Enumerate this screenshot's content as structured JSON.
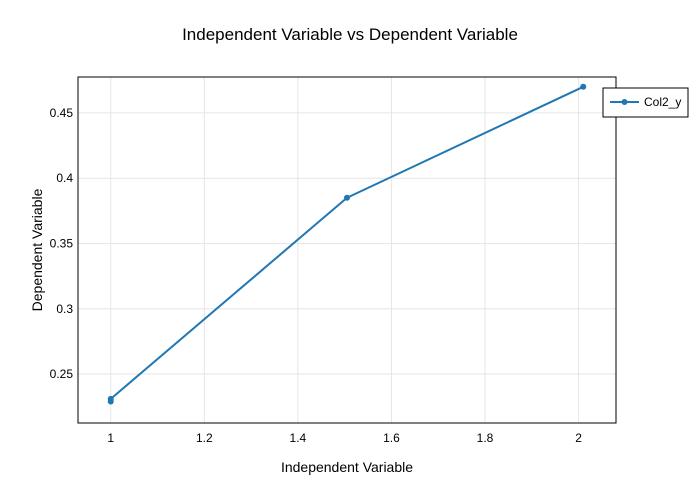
{
  "chart_data": {
    "type": "line",
    "title": "Independent Variable vs Dependent Variable",
    "xlabel": "Independent Variable",
    "ylabel": "Dependent Variable",
    "xlim": [
      0.93,
      2.08
    ],
    "ylim": [
      0.2125,
      0.4775
    ],
    "xticks": [
      1,
      1.2,
      1.4,
      1.6,
      1.8,
      2
    ],
    "yticks": [
      0.25,
      0.3,
      0.35,
      0.4,
      0.45
    ],
    "grid": true,
    "legend_position": "top-right outside",
    "series": [
      {
        "name": "Col2_y",
        "color": "#1f77b4",
        "x": [
          1.0,
          1.0,
          1.505,
          2.01
        ],
        "y": [
          0.229,
          0.231,
          0.385,
          0.47
        ]
      }
    ]
  }
}
